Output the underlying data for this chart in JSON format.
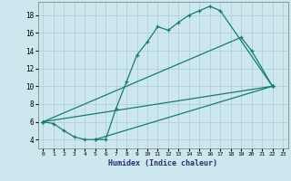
{
  "xlabel": "Humidex (Indice chaleur)",
  "ylabel": "",
  "xlim": [
    -0.5,
    23.5
  ],
  "ylim": [
    3,
    19.5
  ],
  "yticks": [
    4,
    6,
    8,
    10,
    12,
    14,
    16,
    18
  ],
  "xticks": [
    0,
    1,
    2,
    3,
    4,
    5,
    6,
    7,
    8,
    9,
    10,
    11,
    12,
    13,
    14,
    15,
    16,
    17,
    18,
    19,
    20,
    21,
    22,
    23
  ],
  "bg_color": "#cce8ee",
  "grid_color": "#b0d0d8",
  "line_color": "#1a7a6e",
  "line1_x": [
    0,
    1,
    2,
    3,
    4,
    5,
    6,
    7,
    8,
    9,
    10,
    11,
    12,
    13,
    14,
    15,
    16,
    17,
    22
  ],
  "line1_y": [
    6,
    5.8,
    5,
    4.3,
    4,
    4,
    4,
    7.5,
    10.5,
    13.5,
    15,
    16.7,
    16.3,
    17.2,
    18,
    18.5,
    19,
    18.5,
    10
  ],
  "line2_x": [
    0,
    22
  ],
  "line2_y": [
    6,
    10
  ],
  "line3_x": [
    5,
    22
  ],
  "line3_y": [
    4,
    10
  ],
  "line4_x": [
    0,
    19,
    20,
    22
  ],
  "line4_y": [
    6,
    15.5,
    14,
    10
  ]
}
